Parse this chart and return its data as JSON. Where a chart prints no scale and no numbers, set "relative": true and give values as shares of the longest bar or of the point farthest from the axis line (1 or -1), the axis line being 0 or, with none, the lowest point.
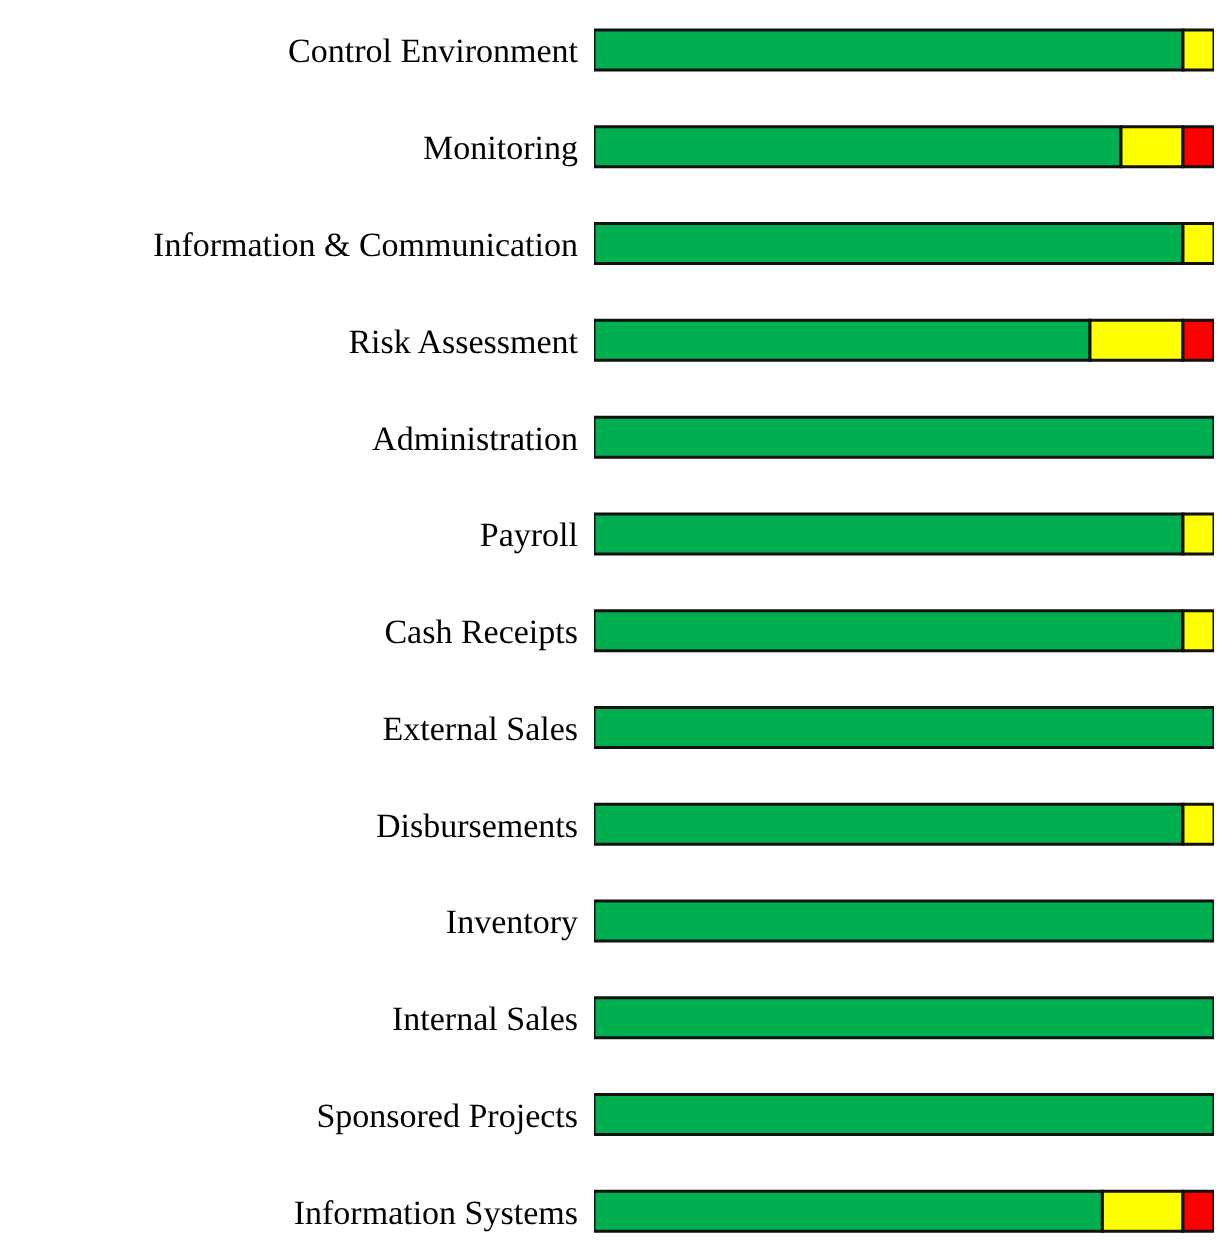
{
  "chart_data": {
    "type": "bar",
    "orientation": "horizontal",
    "stacked": true,
    "relative": true,
    "legend": false,
    "grid": false,
    "categories": [
      "Control Environment",
      "Monitoring",
      "Information & Communication",
      "Risk Assessment",
      "Administration",
      "Payroll",
      "Cash Receipts",
      "External Sales",
      "Disbursements",
      "Inventory",
      "Internal Sales",
      "Sponsored Projects",
      "Information Systems"
    ],
    "series": [
      {
        "color": "#00b050",
        "values": [
          0.95,
          0.85,
          0.95,
          0.8,
          1,
          0.95,
          0.95,
          1,
          0.95,
          1,
          1,
          1,
          0.82
        ]
      },
      {
        "color": "#ffff00",
        "values": [
          0.05,
          0.1,
          0.05,
          0.15,
          0,
          0.05,
          0.05,
          0,
          0.05,
          0,
          0,
          0,
          0.13
        ]
      },
      {
        "color": "#ff0000",
        "values": [
          0,
          0.05,
          0,
          0.05,
          0,
          0,
          0,
          0,
          0,
          0,
          0,
          0,
          0.05
        ]
      }
    ]
  }
}
